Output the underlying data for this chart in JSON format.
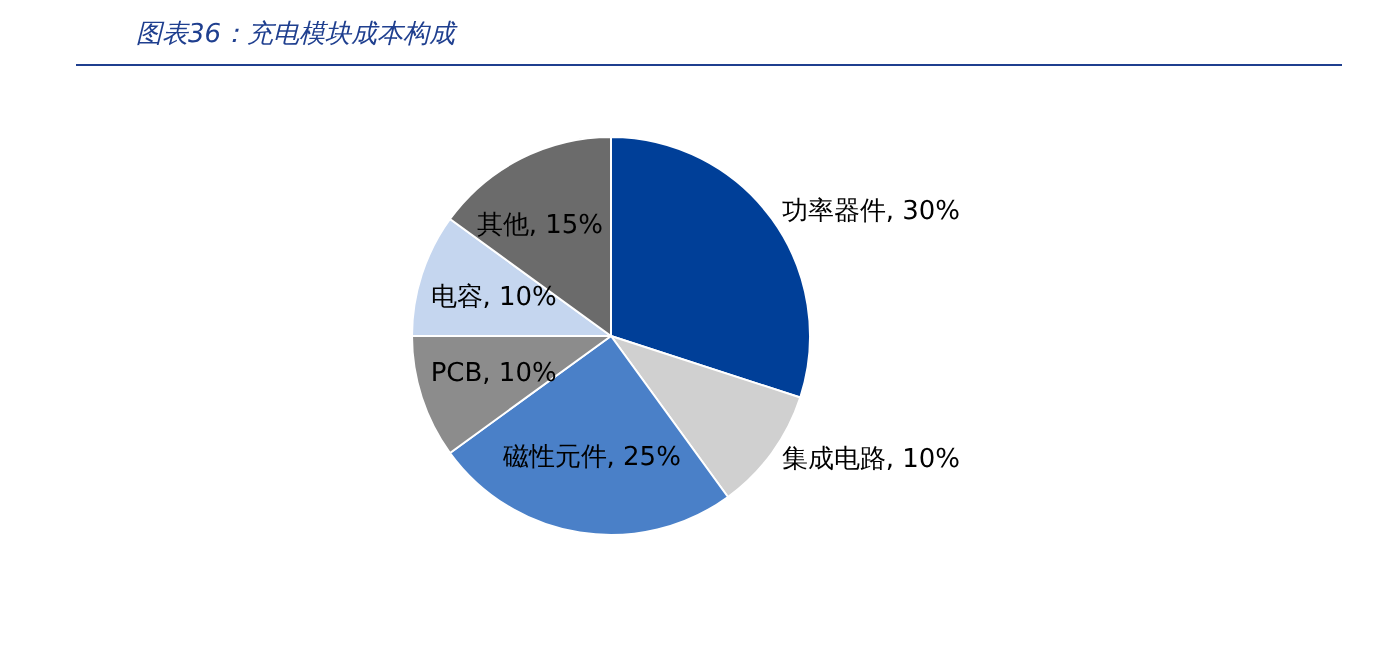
{
  "chart_data": {
    "type": "pie",
    "title": "图表36：充电模块成本构成",
    "categories": [
      "功率器件",
      "集成电路",
      "磁性元件",
      "PCB",
      "电容",
      "其他"
    ],
    "values": [
      30,
      10,
      25,
      10,
      10,
      15
    ],
    "value_labels": [
      "30%",
      "10%",
      "25%",
      "10%",
      "10%",
      "15%"
    ],
    "colors": [
      "#003f98",
      "#d0d0d0",
      "#4a80c8",
      "#8c8c8c",
      "#c5d6ef",
      "#6b6b6b"
    ],
    "legend": false
  }
}
